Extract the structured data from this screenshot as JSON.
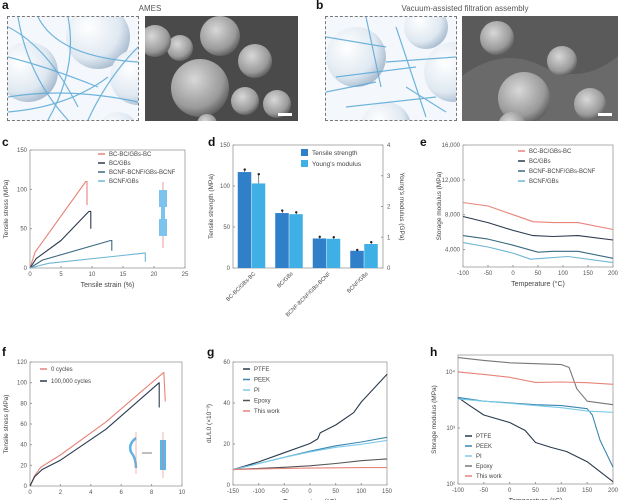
{
  "panels": {
    "a": {
      "letter": "a",
      "title": "AMES"
    },
    "b": {
      "letter": "b",
      "title": "Vacuum-assisted filtration assembly"
    },
    "c": {
      "letter": "c"
    },
    "d": {
      "letter": "d"
    },
    "e": {
      "letter": "e"
    },
    "f": {
      "letter": "f"
    },
    "g": {
      "letter": "g"
    },
    "h": {
      "letter": "h"
    }
  },
  "chart_data": [
    {
      "id": "c",
      "type": "line",
      "xlabel": "Tensile strain (%)",
      "ylabel": "Tensile stress (MPa)",
      "xlim": [
        0,
        25
      ],
      "ylim": [
        0,
        150
      ],
      "xticks": [
        "0",
        "5",
        "10",
        "15",
        "20",
        "25"
      ],
      "yticks": [
        "0",
        "50",
        "100",
        "150"
      ],
      "legend_position": "top-right",
      "series": [
        {
          "name": "BC-BC/GBs-BC",
          "color": "#e8837a",
          "points": [
            [
              0,
              0
            ],
            [
              0.8,
              20
            ],
            [
              9,
              110
            ],
            [
              9.2,
              110
            ],
            [
              9.2,
              80
            ]
          ]
        },
        {
          "name": "BC/GBs",
          "color": "#2a3a4e",
          "points": [
            [
              0,
              0
            ],
            [
              1,
              12
            ],
            [
              5,
              35
            ],
            [
              9.5,
              72
            ],
            [
              9.8,
              72
            ],
            [
              9.8,
              50
            ]
          ]
        },
        {
          "name": "BCNF-BCNF/GBs-BCNF",
          "color": "#3a6a82",
          "points": [
            [
              0,
              0
            ],
            [
              2,
              10
            ],
            [
              13,
              35
            ],
            [
              13.2,
              35
            ],
            [
              13.2,
              22
            ]
          ]
        },
        {
          "name": "BCNF/GBs",
          "color": "#6fb6d4",
          "points": [
            [
              0,
              0
            ],
            [
              3,
              6
            ],
            [
              18.5,
              19
            ],
            [
              18.6,
              19
            ],
            [
              18.6,
              8
            ]
          ]
        }
      ]
    },
    {
      "id": "d",
      "type": "bar",
      "categories": [
        "BC-BC/GBs-BC",
        "BC/GBs",
        "BCNF-BCNF/GBs-BCNF",
        "BCNF/GBs"
      ],
      "ylabel": "Tensile strength (MPa)",
      "y2label": "Young's modulus (GPa)",
      "ylim": [
        0,
        150
      ],
      "y2lim": [
        0,
        4
      ],
      "yticks": [
        "0",
        "50",
        "100",
        "150"
      ],
      "y2ticks": [
        "0",
        "1",
        "2",
        "3",
        "4"
      ],
      "legend_position": "top-right",
      "series": [
        {
          "name": "Tensile strength",
          "color": "#2f7fc9",
          "axis": "left",
          "values": [
            117,
            67,
            36,
            21
          ],
          "errors": [
            3,
            3,
            2,
            1
          ]
        },
        {
          "name": "Young's modulus",
          "color": "#3fb0e6",
          "axis": "right",
          "values": [
            2.75,
            1.75,
            0.95,
            0.78
          ],
          "errors": [
            0.3,
            0.06,
            0.05,
            0.06
          ]
        }
      ]
    },
    {
      "id": "e",
      "type": "line",
      "xlabel": "Temperature (°C)",
      "ylabel": "Storage modulus (MPa)",
      "xlim": [
        -100,
        200
      ],
      "ylim": [
        2000,
        16000
      ],
      "xticks": [
        "-100",
        "-50",
        "0",
        "50",
        "100",
        "150",
        "200"
      ],
      "yticks": [
        "4,000",
        "8,000",
        "12,000",
        "16,000"
      ],
      "legend_position": "top-right",
      "series": [
        {
          "name": "BC-BC/GBs-BC",
          "color": "#e8837a",
          "points": [
            [
              -100,
              9400
            ],
            [
              -50,
              9000
            ],
            [
              0,
              8000
            ],
            [
              40,
              7200
            ],
            [
              80,
              7100
            ],
            [
              130,
              7100
            ],
            [
              200,
              6300
            ]
          ]
        },
        {
          "name": "BC/GBs",
          "color": "#2a3a4e",
          "points": [
            [
              -100,
              7800
            ],
            [
              -50,
              7100
            ],
            [
              0,
              6200
            ],
            [
              40,
              5600
            ],
            [
              80,
              5500
            ],
            [
              130,
              5600
            ],
            [
              200,
              5100
            ]
          ]
        },
        {
          "name": "BCNF-BCNF/GBs-BCNF",
          "color": "#3a6a82",
          "points": [
            [
              -100,
              5600
            ],
            [
              -50,
              5200
            ],
            [
              0,
              4500
            ],
            [
              50,
              3700
            ],
            [
              80,
              3800
            ],
            [
              130,
              3800
            ],
            [
              200,
              3000
            ]
          ]
        },
        {
          "name": "BCNF/GBs",
          "color": "#6fb6d4",
          "points": [
            [
              -100,
              4800
            ],
            [
              -50,
              4300
            ],
            [
              0,
              3600
            ],
            [
              35,
              2900
            ],
            [
              60,
              3000
            ],
            [
              110,
              3200
            ],
            [
              200,
              2500
            ]
          ]
        }
      ]
    },
    {
      "id": "f",
      "type": "line",
      "xlabel": "Tensile strain (%)",
      "ylabel": "Tensile stress (MPa)",
      "xlim": [
        0,
        10
      ],
      "ylim": [
        0,
        120
      ],
      "xticks": [
        "0",
        "2",
        "4",
        "6",
        "8",
        "10"
      ],
      "yticks": [
        "0",
        "20",
        "40",
        "60",
        "80",
        "100",
        "120"
      ],
      "legend_position": "top-left",
      "series": [
        {
          "name": "0 cycles",
          "color": "#e8837a",
          "points": [
            [
              0,
              0
            ],
            [
              0.3,
              10
            ],
            [
              0.7,
              18
            ],
            [
              2,
              30
            ],
            [
              5,
              62
            ],
            [
              8.8,
              110
            ],
            [
              8.8,
              110
            ],
            [
              8.9,
              82
            ]
          ]
        },
        {
          "name": "100,000 cycles",
          "color": "#2a3a4e",
          "points": [
            [
              0,
              0
            ],
            [
              0.3,
              9
            ],
            [
              0.8,
              16
            ],
            [
              2,
              25
            ],
            [
              5,
              55
            ],
            [
              8.5,
              100
            ],
            [
              8.5,
              100
            ],
            [
              8.5,
              76
            ]
          ]
        }
      ]
    },
    {
      "id": "g",
      "type": "line",
      "xlabel": "Temperature (°C)",
      "ylabel": "dL/L0 (×10⁻³)",
      "xlim": [
        -150,
        150
      ],
      "ylim": [
        -10,
        70
      ],
      "xticks": [
        "-150",
        "-100",
        "-50",
        "0",
        "50",
        "100",
        "150"
      ],
      "yticks": [
        "0",
        "20",
        "40",
        "60"
      ],
      "legend_position": "top-left",
      "series": [
        {
          "name": "PTFE",
          "color": "#2a3a4e",
          "points": [
            [
              -150,
              0
            ],
            [
              -100,
              5
            ],
            [
              -50,
              11
            ],
            [
              0,
              17
            ],
            [
              15,
              20
            ],
            [
              20,
              24
            ],
            [
              50,
              29
            ],
            [
              85,
              37
            ],
            [
              100,
              44
            ],
            [
              150,
              62
            ]
          ]
        },
        {
          "name": "PEEK",
          "color": "#3a86b0",
          "points": [
            [
              -150,
              0
            ],
            [
              -100,
              4
            ],
            [
              -50,
              8
            ],
            [
              0,
              12
            ],
            [
              50,
              15.5
            ],
            [
              100,
              18
            ],
            [
              150,
              21
            ]
          ]
        },
        {
          "name": "PI",
          "color": "#7ccbe8",
          "points": [
            [
              -150,
              0
            ],
            [
              -100,
              4
            ],
            [
              -50,
              8
            ],
            [
              0,
              11.5
            ],
            [
              50,
              14.5
            ],
            [
              100,
              16.5
            ],
            [
              150,
              19
            ]
          ]
        },
        {
          "name": "Epoxy",
          "color": "#555555",
          "points": [
            [
              -150,
              0
            ],
            [
              -100,
              0.8
            ],
            [
              -50,
              1.5
            ],
            [
              0,
              2.5
            ],
            [
              50,
              4
            ],
            [
              100,
              5.8
            ],
            [
              150,
              7
            ]
          ]
        },
        {
          "name": "This work",
          "color": "#e8837a",
          "points": [
            [
              -150,
              0
            ],
            [
              -100,
              0.4
            ],
            [
              -50,
              0.7
            ],
            [
              0,
              1.0
            ],
            [
              50,
              1.2
            ],
            [
              100,
              1.3
            ],
            [
              150,
              1.4
            ]
          ]
        }
      ]
    },
    {
      "id": "h",
      "type": "line",
      "xlabel": "Temperature (°C)",
      "ylabel": "Storage modulus (MPa)",
      "xscale": "linear",
      "yscale": "log",
      "xlim": [
        -100,
        200
      ],
      "ylim": [
        100,
        20000
      ],
      "xticks": [
        "-100",
        "-50",
        "0",
        "50",
        "100",
        "150",
        "200"
      ],
      "yticks": [
        "10²",
        "10³",
        "10⁴"
      ],
      "legend_position": "bottom-left",
      "series": [
        {
          "name": "PTFE",
          "color": "#2a3a4e",
          "points": [
            [
              -100,
              3500
            ],
            [
              -80,
              2600
            ],
            [
              -50,
              1700
            ],
            [
              0,
              1250
            ],
            [
              30,
              900
            ],
            [
              50,
              550
            ],
            [
              80,
              450
            ],
            [
              110,
              380
            ],
            [
              150,
              250
            ],
            [
              200,
              110
            ]
          ]
        },
        {
          "name": "PEEK",
          "color": "#3a86b0",
          "points": [
            [
              -100,
              3500
            ],
            [
              -50,
              3000
            ],
            [
              0,
              2800
            ],
            [
              50,
              2600
            ],
            [
              100,
              2500
            ],
            [
              150,
              2200
            ],
            [
              160,
              1700
            ],
            [
              175,
              600
            ],
            [
              200,
              200
            ]
          ]
        },
        {
          "name": "PI",
          "color": "#7ccbe8",
          "points": [
            [
              -100,
              3300
            ],
            [
              -50,
              3000
            ],
            [
              0,
              2750
            ],
            [
              50,
              2500
            ],
            [
              100,
              2300
            ],
            [
              150,
              2000
            ],
            [
              200,
              1900
            ]
          ]
        },
        {
          "name": "Epoxy",
          "color": "#777777",
          "points": [
            [
              -100,
              18000
            ],
            [
              -50,
              16000
            ],
            [
              0,
              14500
            ],
            [
              50,
              14000
            ],
            [
              100,
              13500
            ],
            [
              115,
              12000
            ],
            [
              130,
              5000
            ],
            [
              150,
              3000
            ],
            [
              200,
              2600
            ]
          ]
        },
        {
          "name": "This work",
          "color": "#e8837a",
          "points": [
            [
              -100,
              10000
            ],
            [
              -50,
              9000
            ],
            [
              0,
              8000
            ],
            [
              50,
              6500
            ],
            [
              100,
              6600
            ],
            [
              150,
              6400
            ],
            [
              200,
              6000
            ]
          ]
        }
      ]
    }
  ]
}
